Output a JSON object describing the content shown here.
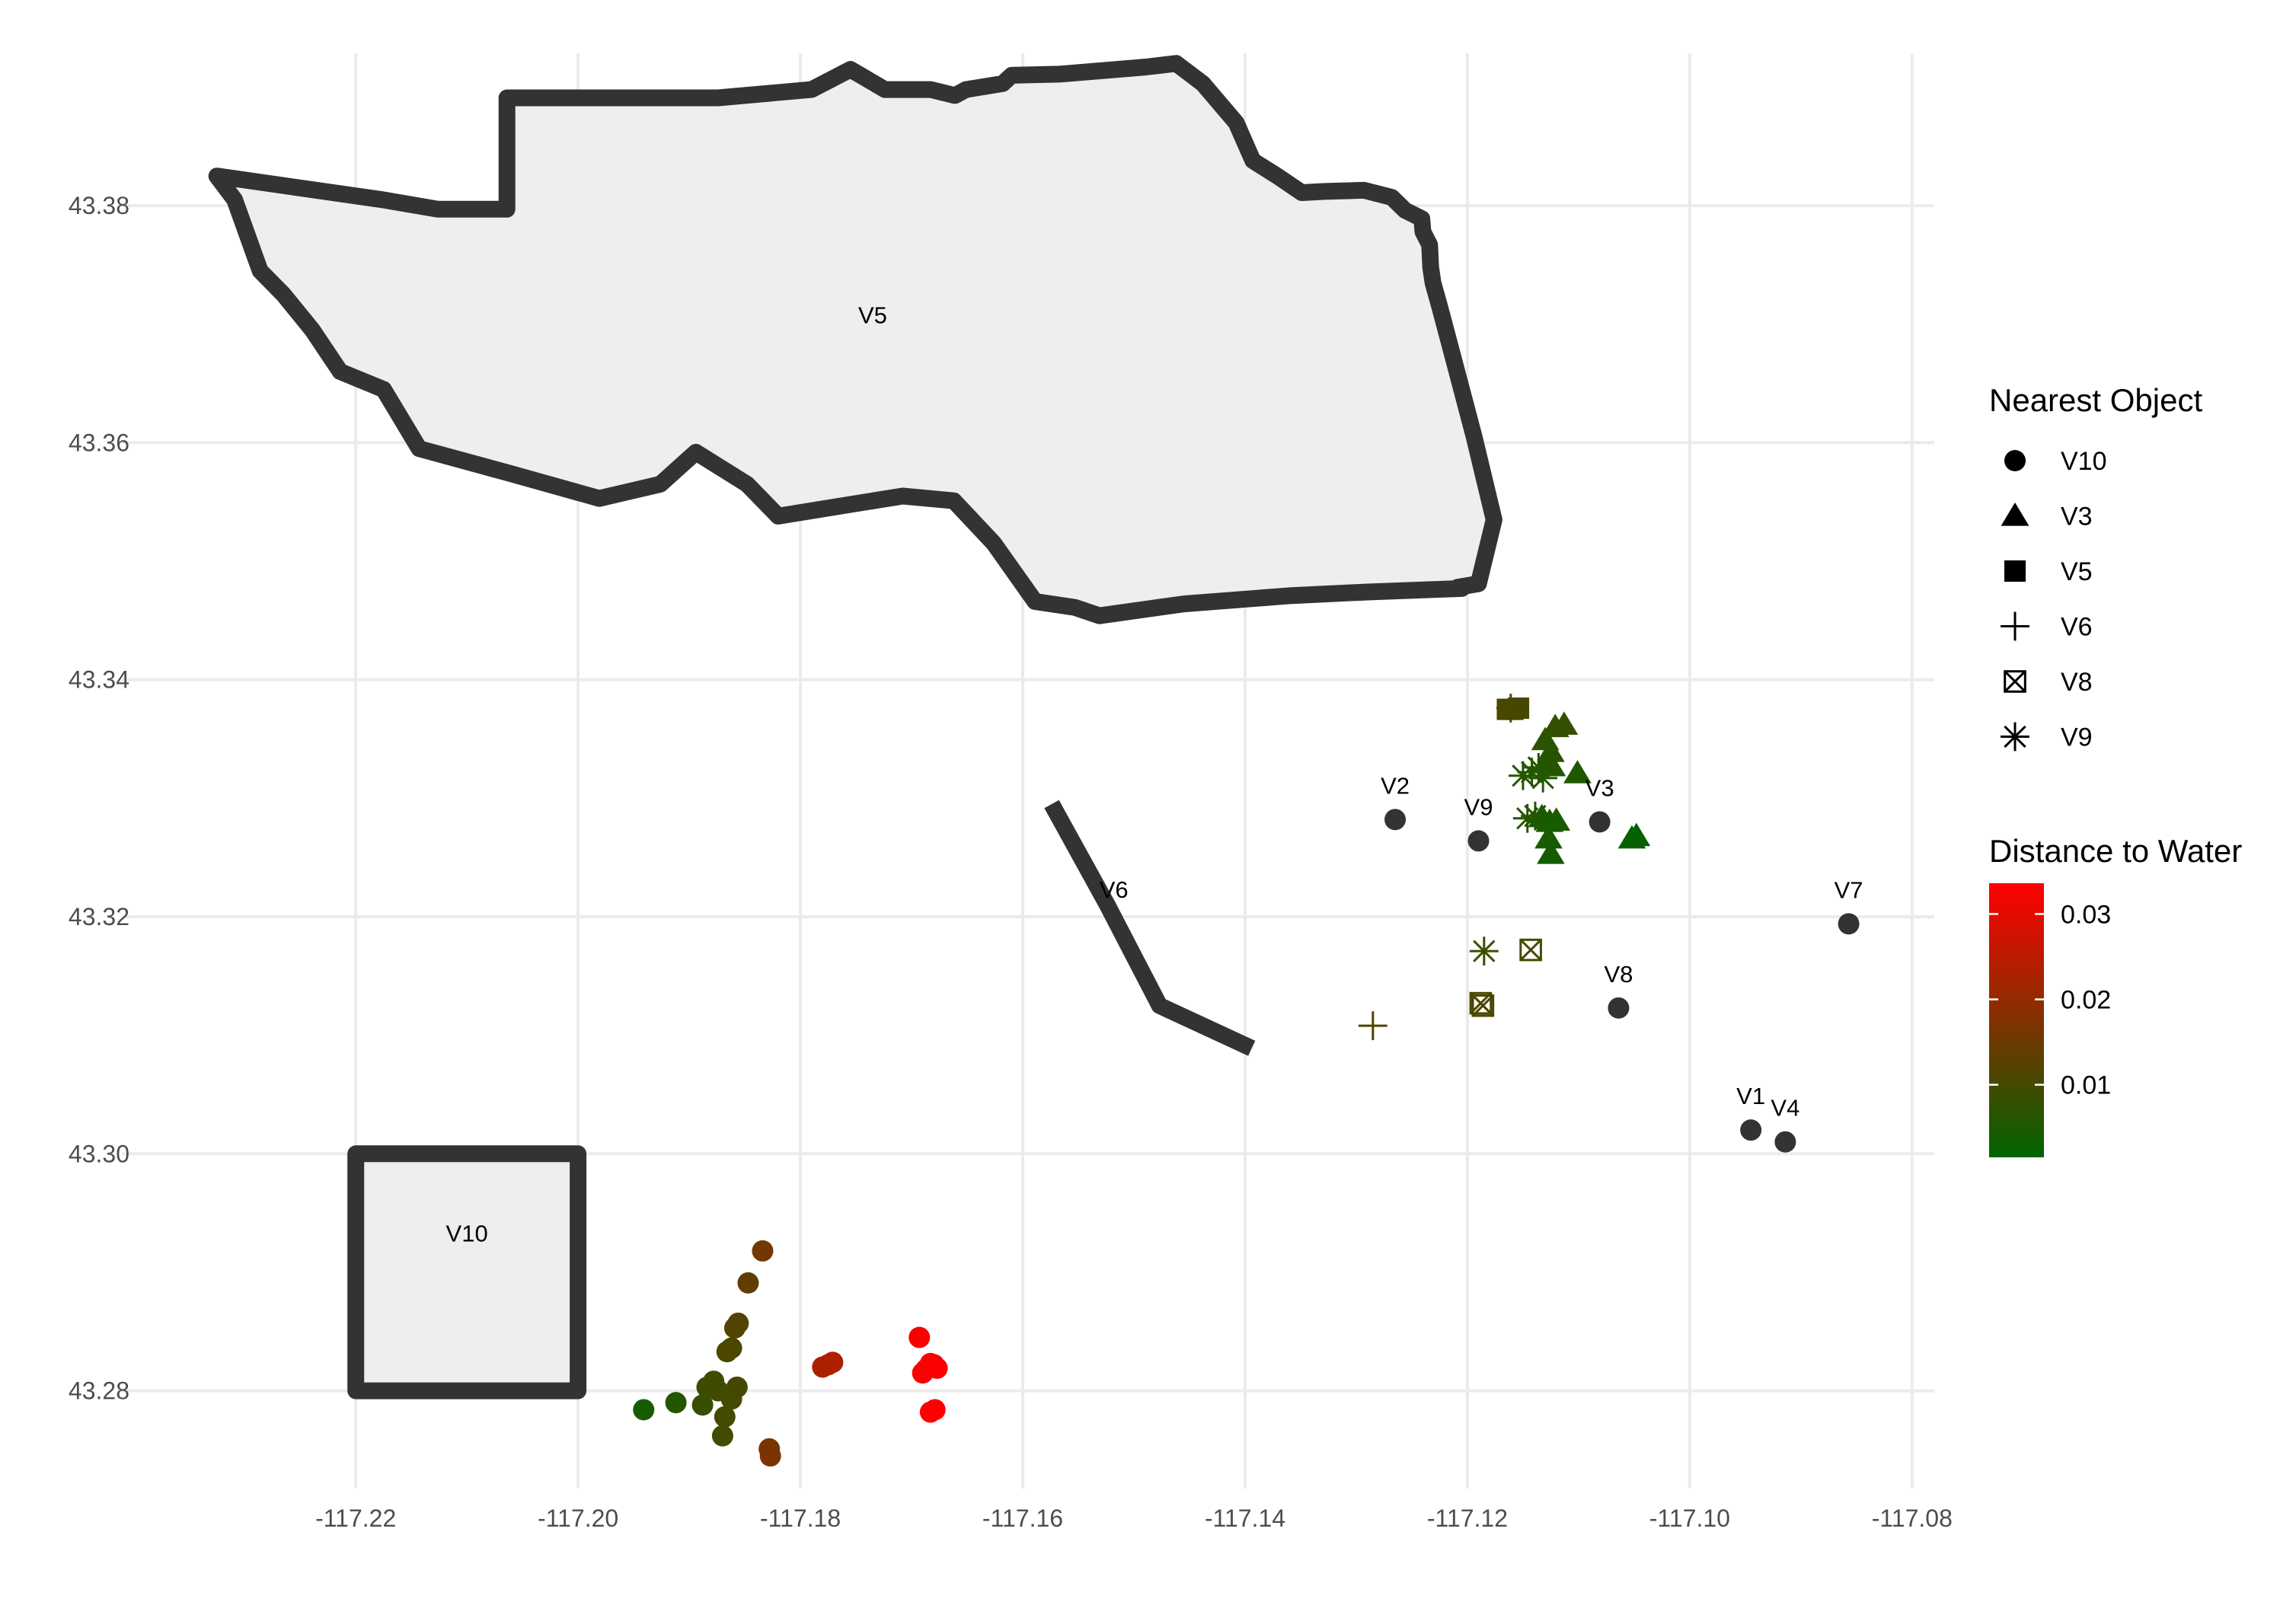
{
  "chart_data": {
    "type": "scatter",
    "title": "",
    "xlabel": "",
    "ylabel": "",
    "xlim": [
      -117.232,
      -117.078
    ],
    "ylim": [
      43.2695,
      43.3935
    ],
    "x_ticks": [
      -117.22,
      -117.2,
      -117.18,
      -117.16,
      -117.14,
      -117.12,
      -117.1,
      -117.08
    ],
    "x_tick_labels": [
      "-117.22",
      "-117.20",
      "-117.18",
      "-117.16",
      "-117.14",
      "-117.12",
      "-117.10",
      "-117.08"
    ],
    "y_ticks": [
      43.28,
      43.3,
      43.32,
      43.34,
      43.36,
      43.38
    ],
    "y_tick_labels": [
      "43.28",
      "43.30",
      "43.32",
      "43.34",
      "43.36",
      "43.38"
    ],
    "grid": true,
    "background": "#ffffff",
    "gridline_color": "#ebebeb",
    "outline_color": "#333333",
    "fill_color": "#eeeeee",
    "polygons": [
      {
        "name": "V5",
        "label_at": [
          -117.1735,
          43.3708
        ],
        "coords": [
          [
            -117.2325,
            43.3825
          ],
          [
            -117.2309,
            43.3805
          ],
          [
            -117.2286,
            43.3745
          ],
          [
            -117.2265,
            43.3725
          ],
          [
            -117.2239,
            43.3695
          ],
          [
            -117.2214,
            43.366
          ],
          [
            -117.2175,
            43.3645
          ],
          [
            -117.2143,
            43.3595
          ],
          [
            -117.2061,
            43.3574
          ],
          [
            -117.1981,
            43.3553
          ],
          [
            -117.1926,
            43.3565
          ],
          [
            -117.1894,
            43.3592
          ],
          [
            -117.1848,
            43.3565
          ],
          [
            -117.182,
            43.3538
          ],
          [
            -117.1774,
            43.3545
          ],
          [
            -117.1708,
            43.3555
          ],
          [
            -117.1662,
            43.3551
          ],
          [
            -117.1626,
            43.3515
          ],
          [
            -117.1589,
            43.3466
          ],
          [
            -117.1553,
            43.3461
          ],
          [
            -117.1531,
            43.3454
          ],
          [
            -117.1455,
            43.3464
          ],
          [
            -117.1358,
            43.3471
          ],
          [
            -117.129,
            43.3474
          ],
          [
            -117.1205,
            43.3477
          ],
          [
            -117.1209,
            43.3478
          ],
          [
            -117.119,
            43.3481
          ],
          [
            -117.1176,
            43.3535
          ],
          [
            -117.1194,
            43.3605
          ],
          [
            -117.121,
            43.3662
          ],
          [
            -117.1225,
            43.3715
          ],
          [
            -117.1231,
            43.3735
          ],
          [
            -117.1233,
            43.3748
          ],
          [
            -117.1234,
            43.3767
          ],
          [
            -117.124,
            43.3778
          ],
          [
            -117.1241,
            43.3789
          ],
          [
            -117.1256,
            43.3796
          ],
          [
            -117.1268,
            43.3807
          ],
          [
            -117.1293,
            43.3813
          ],
          [
            -117.1328,
            43.3812
          ],
          [
            -117.1349,
            43.3811
          ],
          [
            -117.1371,
            43.3825
          ],
          [
            -117.1393,
            43.3838
          ],
          [
            -117.1408,
            43.387
          ],
          [
            -117.1438,
            43.3903
          ],
          [
            -117.1462,
            43.392
          ],
          [
            -117.1489,
            43.3917
          ],
          [
            -117.1567,
            43.3911
          ],
          [
            -117.161,
            43.391
          ],
          [
            -117.1618,
            43.3903
          ],
          [
            -117.1651,
            43.3898
          ],
          [
            -117.1661,
            43.3893
          ],
          [
            -117.1683,
            43.3898
          ],
          [
            -117.1724,
            43.3898
          ],
          [
            -117.1755,
            43.3915
          ],
          [
            -117.179,
            43.3898
          ],
          [
            -117.1874,
            43.3891
          ],
          [
            -117.1936,
            43.3891
          ],
          [
            -117.2064,
            43.3891
          ],
          [
            -117.2064,
            43.3797
          ],
          [
            -117.2068,
            43.3797
          ],
          [
            -117.2126,
            43.3797
          ],
          [
            -117.2176,
            43.3805
          ],
          [
            -117.2325,
            43.3825
          ]
        ]
      },
      {
        "name": "V10",
        "label_at": [
          -117.21,
          43.2933
        ],
        "coords": [
          [
            -117.22,
            43.28
          ],
          [
            -117.22,
            43.3
          ],
          [
            -117.2,
            43.3
          ],
          [
            -117.2,
            43.28
          ],
          [
            -117.22,
            43.28
          ]
        ]
      }
    ],
    "lines": [
      {
        "name": "V6",
        "label_at": [
          -117.1518,
          43.3223
        ],
        "coords": [
          [
            -117.1574,
            43.3295
          ],
          [
            -117.1524,
            43.321
          ],
          [
            -117.1477,
            43.3125
          ],
          [
            -117.1394,
            43.3089
          ]
        ]
      }
    ],
    "objects": [
      {
        "name": "V2",
        "x": -117.1265,
        "y": 43.3282
      },
      {
        "name": "V9",
        "x": -117.119,
        "y": 43.3264
      },
      {
        "name": "V3",
        "x": -117.1081,
        "y": 43.328
      },
      {
        "name": "V7",
        "x": -117.0857,
        "y": 43.3194
      },
      {
        "name": "V8",
        "x": -117.1064,
        "y": 43.3123
      },
      {
        "name": "V1",
        "x": -117.0945,
        "y": 43.302
      },
      {
        "name": "V4",
        "x": -117.0914,
        "y": 43.301
      }
    ],
    "legend_shape": {
      "title": "Nearest Object",
      "position": "right",
      "entries": [
        {
          "label": "V10",
          "shape": "circle"
        },
        {
          "label": "V3",
          "shape": "triangle"
        },
        {
          "label": "V5",
          "shape": "square"
        },
        {
          "label": "V6",
          "shape": "plus"
        },
        {
          "label": "V8",
          "shape": "boxed-x"
        },
        {
          "label": "V9",
          "shape": "asterisk"
        }
      ]
    },
    "legend_color": {
      "title": "Distance to Water",
      "position": "right",
      "low_color": "#006400",
      "high_color": "#ff0000",
      "range": [
        0.0015,
        0.0336
      ],
      "breaks": [
        0.01,
        0.02,
        0.03
      ],
      "break_labels": [
        "0.01",
        "0.02",
        "0.03"
      ]
    },
    "points": [
      {
        "x": -117.1941,
        "y": 43.2784,
        "shape": "circle",
        "dist": 0.0045
      },
      {
        "x": -117.1912,
        "y": 43.279,
        "shape": "circle",
        "dist": 0.006
      },
      {
        "x": -117.1888,
        "y": 43.2788,
        "shape": "circle",
        "dist": 0.0085
      },
      {
        "x": -117.1884,
        "y": 43.2803,
        "shape": "circle",
        "dist": 0.009
      },
      {
        "x": -117.1878,
        "y": 43.2808,
        "shape": "circle",
        "dist": 0.0095
      },
      {
        "x": -117.1874,
        "y": 43.28,
        "shape": "circle",
        "dist": 0.0095
      },
      {
        "x": -117.1868,
        "y": 43.2778,
        "shape": "circle",
        "dist": 0.01
      },
      {
        "x": -117.187,
        "y": 43.2762,
        "shape": "circle",
        "dist": 0.01
      },
      {
        "x": -117.1862,
        "y": 43.2793,
        "shape": "circle",
        "dist": 0.01
      },
      {
        "x": -117.1857,
        "y": 43.2803,
        "shape": "circle",
        "dist": 0.0105
      },
      {
        "x": -117.1866,
        "y": 43.2833,
        "shape": "circle",
        "dist": 0.011
      },
      {
        "x": -117.1862,
        "y": 43.2836,
        "shape": "circle",
        "dist": 0.011
      },
      {
        "x": -117.1859,
        "y": 43.2853,
        "shape": "circle",
        "dist": 0.012
      },
      {
        "x": -117.1856,
        "y": 43.2857,
        "shape": "circle",
        "dist": 0.012
      },
      {
        "x": -117.1847,
        "y": 43.2891,
        "shape": "circle",
        "dist": 0.014
      },
      {
        "x": -117.1834,
        "y": 43.2918,
        "shape": "circle",
        "dist": 0.016
      },
      {
        "x": -117.1828,
        "y": 43.2751,
        "shape": "circle",
        "dist": 0.0165
      },
      {
        "x": -117.1827,
        "y": 43.2745,
        "shape": "circle",
        "dist": 0.017
      },
      {
        "x": -117.178,
        "y": 43.282,
        "shape": "circle",
        "dist": 0.023
      },
      {
        "x": -117.1775,
        "y": 43.2822,
        "shape": "circle",
        "dist": 0.023
      },
      {
        "x": -117.1771,
        "y": 43.2824,
        "shape": "circle",
        "dist": 0.0235
      },
      {
        "x": -117.1693,
        "y": 43.2845,
        "shape": "circle",
        "dist": 0.0325
      },
      {
        "x": -117.169,
        "y": 43.2815,
        "shape": "circle",
        "dist": 0.033
      },
      {
        "x": -117.1687,
        "y": 43.2818,
        "shape": "circle",
        "dist": 0.033
      },
      {
        "x": -117.1683,
        "y": 43.2823,
        "shape": "circle",
        "dist": 0.0332
      },
      {
        "x": -117.168,
        "y": 43.2822,
        "shape": "circle",
        "dist": 0.0334
      },
      {
        "x": -117.1677,
        "y": 43.2819,
        "shape": "circle",
        "dist": 0.0334
      },
      {
        "x": -117.1683,
        "y": 43.2782,
        "shape": "circle",
        "dist": 0.0334
      },
      {
        "x": -117.1679,
        "y": 43.2784,
        "shape": "circle",
        "dist": 0.0336
      },
      {
        "x": -117.1159,
        "y": 43.3375,
        "shape": "square",
        "dist": 0.011
      },
      {
        "x": -117.1164,
        "y": 43.3375,
        "shape": "square",
        "dist": 0.011
      },
      {
        "x": -117.1154,
        "y": 43.3376,
        "shape": "square",
        "dist": 0.0105
      },
      {
        "x": -117.1186,
        "y": 43.3125,
        "shape": "boxed-x",
        "dist": 0.011
      },
      {
        "x": -117.1188,
        "y": 43.3127,
        "shape": "boxed-x",
        "dist": 0.011
      },
      {
        "x": -117.1143,
        "y": 43.3172,
        "shape": "boxed-x",
        "dist": 0.01
      },
      {
        "x": -117.1285,
        "y": 43.3108,
        "shape": "plus",
        "dist": 0.0115
      },
      {
        "x": -117.1161,
        "y": 43.3376,
        "shape": "plus",
        "dist": 0.0105
      },
      {
        "x": -117.1185,
        "y": 43.3171,
        "shape": "asterisk",
        "dist": 0.009
      },
      {
        "x": -117.115,
        "y": 43.3319,
        "shape": "asterisk",
        "dist": 0.006
      },
      {
        "x": -117.1142,
        "y": 43.3322,
        "shape": "asterisk",
        "dist": 0.006
      },
      {
        "x": -117.1136,
        "y": 43.3326,
        "shape": "asterisk",
        "dist": 0.006
      },
      {
        "x": -117.1132,
        "y": 43.3317,
        "shape": "asterisk",
        "dist": 0.0055
      },
      {
        "x": -117.1146,
        "y": 43.3283,
        "shape": "asterisk",
        "dist": 0.007
      },
      {
        "x": -117.1139,
        "y": 43.3285,
        "shape": "asterisk",
        "dist": 0.006
      },
      {
        "x": -117.1121,
        "y": 43.336,
        "shape": "triangle",
        "dist": 0.0075
      },
      {
        "x": -117.1113,
        "y": 43.3362,
        "shape": "triangle",
        "dist": 0.008
      },
      {
        "x": -117.113,
        "y": 43.3349,
        "shape": "triangle",
        "dist": 0.007
      },
      {
        "x": -117.1125,
        "y": 43.3339,
        "shape": "triangle",
        "dist": 0.0068
      },
      {
        "x": -117.1129,
        "y": 43.333,
        "shape": "triangle",
        "dist": 0.006
      },
      {
        "x": -117.1124,
        "y": 43.3327,
        "shape": "triangle",
        "dist": 0.006
      },
      {
        "x": -117.1101,
        "y": 43.3321,
        "shape": "triangle",
        "dist": 0.0055
      },
      {
        "x": -117.1133,
        "y": 43.3284,
        "shape": "triangle",
        "dist": 0.005
      },
      {
        "x": -117.1126,
        "y": 43.328,
        "shape": "triangle",
        "dist": 0.0045
      },
      {
        "x": -117.112,
        "y": 43.3281,
        "shape": "triangle",
        "dist": 0.0045
      },
      {
        "x": -117.1127,
        "y": 43.3266,
        "shape": "triangle",
        "dist": 0.0045
      },
      {
        "x": -117.1125,
        "y": 43.3253,
        "shape": "triangle",
        "dist": 0.004
      },
      {
        "x": -117.1052,
        "y": 43.3266,
        "shape": "triangle",
        "dist": 0.0025
      },
      {
        "x": -117.1048,
        "y": 43.3268,
        "shape": "triangle",
        "dist": 0.0025
      }
    ]
  }
}
